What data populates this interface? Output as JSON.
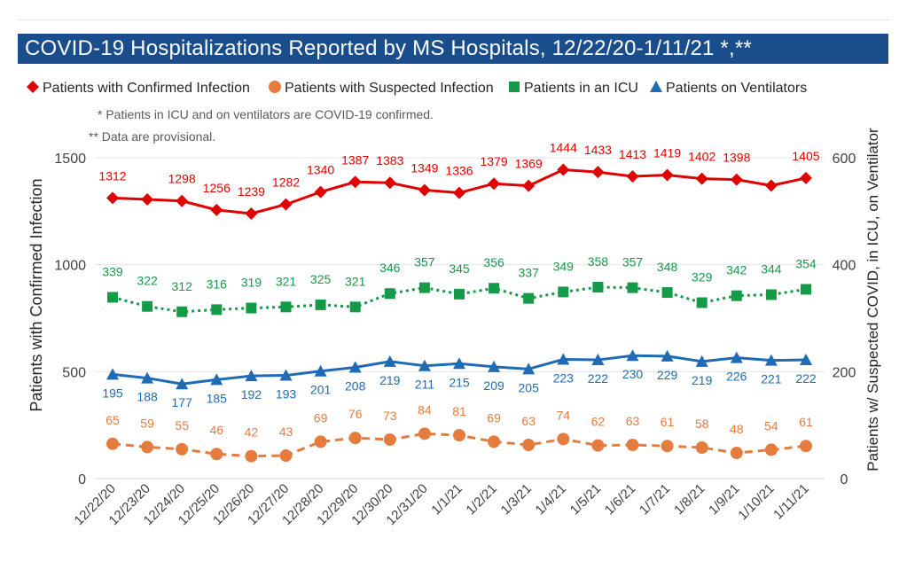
{
  "chart_data": {
    "type": "line",
    "title": "COVID-19 Hospitalizations Reported by MS Hospitals, 12/22/20-1/11/21 *,**",
    "notes": [
      "* Patients in ICU and on ventilators are COVID-19 confirmed.",
      "** Data are provisional."
    ],
    "ylabel": "Patients with Confirmed Infection",
    "y2label": "Patients w/ Suspected COVID, in ICU, on Ventilator",
    "ylim": [
      0,
      1500
    ],
    "y2lim": [
      0,
      600
    ],
    "yticks": [
      0,
      500,
      1000,
      1500
    ],
    "y2ticks": [
      0,
      200,
      400,
      600
    ],
    "legend_position": "top",
    "grid": true,
    "categories": [
      "12/22/20",
      "12/23/20",
      "12/24/20",
      "12/25/20",
      "12/26/20",
      "12/27/20",
      "12/28/20",
      "12/29/20",
      "12/30/20",
      "12/31/20",
      "1/1/21",
      "1/2/21",
      "1/3/21",
      "1/4/21",
      "1/5/21",
      "1/6/21",
      "1/7/21",
      "1/8/21",
      "1/9/21",
      "1/10/21",
      "1/11/21"
    ],
    "series": [
      {
        "name": "Patients with Confirmed Infection",
        "axis": "left",
        "color": "#e00000",
        "marker": "diamond",
        "dash": "solid",
        "values": [
          1312,
          1305,
          1298,
          1256,
          1239,
          1282,
          1340,
          1387,
          1383,
          1349,
          1336,
          1379,
          1369,
          1444,
          1433,
          1413,
          1419,
          1402,
          1398,
          1370,
          1405
        ],
        "labels": [
          "1312",
          "",
          "1298",
          "1256",
          "1239",
          "1282",
          "1340",
          "1387",
          "1383",
          "1349",
          "1336",
          "1379",
          "1369",
          "1444",
          "1433",
          "1413",
          "1419",
          "1402",
          "1398",
          "",
          "1405"
        ]
      },
      {
        "name": "Patients with Suspected Infection",
        "axis": "right",
        "color": "#e57c3e",
        "marker": "circle",
        "dash": "dashed",
        "values": [
          65,
          59,
          55,
          46,
          42,
          43,
          69,
          76,
          73,
          84,
          81,
          69,
          63,
          74,
          62,
          63,
          61,
          58,
          48,
          54,
          61
        ],
        "labels": [
          "65",
          "59",
          "55",
          "46",
          "42",
          "43",
          "69",
          "76",
          "73",
          "84",
          "81",
          "69",
          "63",
          "74",
          "62",
          "63",
          "61",
          "58",
          "48",
          "54",
          "61"
        ]
      },
      {
        "name": "Patients in an ICU",
        "axis": "right",
        "color": "#159a4a",
        "marker": "square",
        "dash": "dotted",
        "values": [
          339,
          322,
          312,
          316,
          319,
          321,
          325,
          321,
          346,
          357,
          345,
          356,
          337,
          349,
          358,
          357,
          348,
          329,
          342,
          344,
          354
        ],
        "labels": [
          "339",
          "322",
          "312",
          "316",
          "319",
          "321",
          "325",
          "321",
          "346",
          "357",
          "345",
          "356",
          "337",
          "349",
          "358",
          "357",
          "348",
          "329",
          "342",
          "344",
          "354"
        ]
      },
      {
        "name": "Patients on Ventilators",
        "axis": "right",
        "color": "#1f6bb5",
        "marker": "triangle",
        "dash": "solid",
        "values": [
          195,
          188,
          177,
          185,
          192,
          193,
          201,
          208,
          219,
          211,
          215,
          209,
          205,
          223,
          222,
          230,
          229,
          219,
          226,
          221,
          222
        ],
        "labels": [
          "195",
          "188",
          "177",
          "185",
          "192",
          "193",
          "201",
          "208",
          "219",
          "211",
          "215",
          "209",
          "205",
          "223",
          "222",
          "230",
          "229",
          "219",
          "226",
          "221",
          "222"
        ]
      }
    ]
  }
}
